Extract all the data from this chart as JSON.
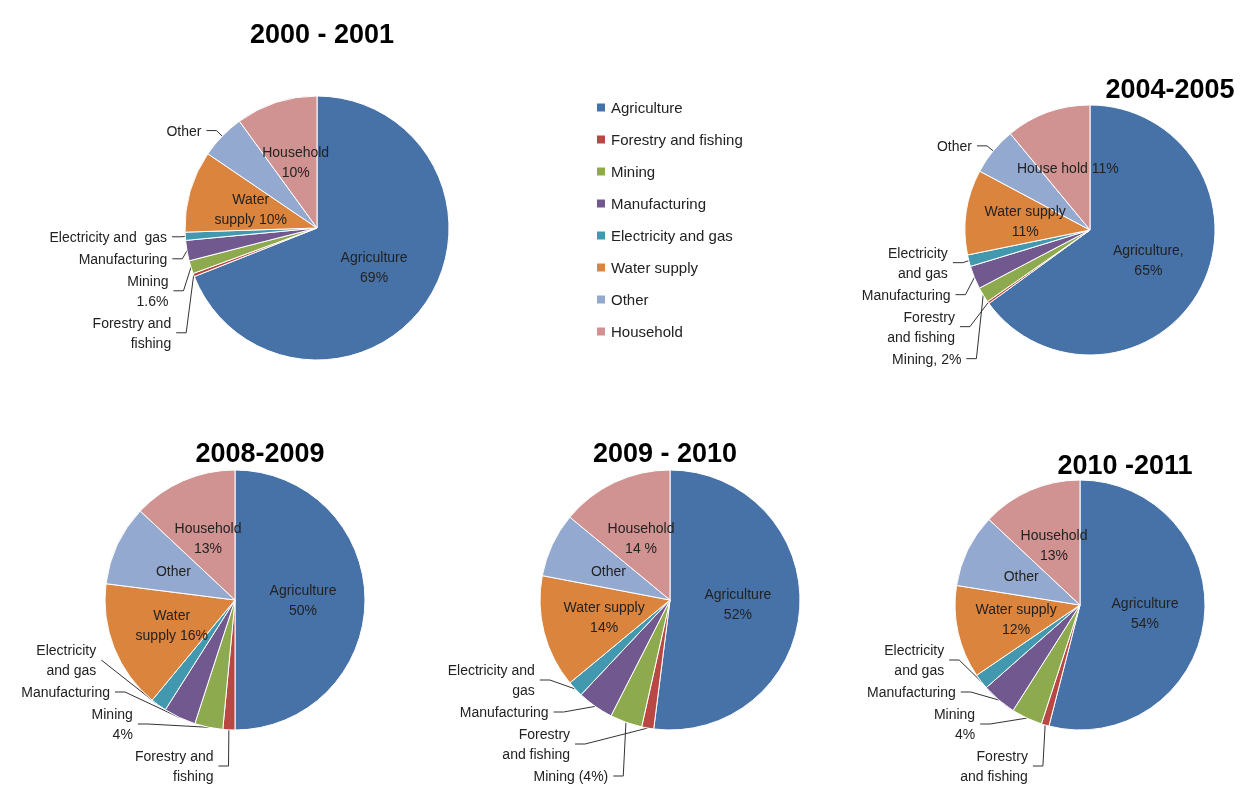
{
  "chart_data": [
    {
      "type": "pie",
      "title": "2000 - 2001",
      "legend": "right",
      "categories": [
        "Agriculture",
        "Forestry and fishing",
        "Mining",
        "Manufacturing",
        "Electricity and gas",
        "Water supply",
        "Other",
        "Household"
      ],
      "values": [
        69,
        0.4,
        1.6,
        2.5,
        1,
        10,
        5.5,
        10
      ],
      "colors": [
        "#4672a8",
        "#b94743",
        "#8eaa4e",
        "#71588f",
        "#4198af",
        "#db843d",
        "#93a9cf",
        "#d19392"
      ],
      "value_labels": [
        "Agriculture\n69%",
        "Forestry and\nfishing",
        "Mining\n1.6%",
        "Manufacturing",
        "Electricity and  gas",
        "Water\nsupply 10%",
        "Other",
        "Household\n10%"
      ]
    },
    {
      "type": "pie",
      "title": "2004-2005",
      "categories": [
        null,
        null,
        null,
        null,
        null,
        null,
        null,
        null
      ],
      "values": [
        65,
        0.3,
        2,
        3,
        1.5,
        11,
        6.2,
        11
      ],
      "colors": [
        "#4672a8",
        "#b94743",
        "#8eaa4e",
        "#71588f",
        "#4198af",
        "#db843d",
        "#93a9cf",
        "#d19392"
      ],
      "value_labels": [
        "Agriculture,\n65%",
        "Forestry\nand fishing",
        "Mining, 2%",
        "Manufacturing",
        "Electricity\nand gas",
        "Water supply\n11%",
        "Other",
        "House hold 11%"
      ]
    },
    {
      "type": "pie",
      "title": "2008-2009",
      "categories": [
        null,
        null,
        null,
        null,
        null,
        null,
        null,
        null
      ],
      "values": [
        50,
        1.5,
        3.5,
        4,
        2,
        16,
        10,
        13
      ],
      "colors": [
        "#4672a8",
        "#b94743",
        "#8eaa4e",
        "#71588f",
        "#4198af",
        "#db843d",
        "#93a9cf",
        "#d19392"
      ],
      "value_labels": [
        "Agriculture\n50%",
        "Forestry and\nfishing",
        "Mining\n4%",
        "Manufacturing",
        "Electricity\nand gas",
        "Water\nsupply 16%",
        "Other",
        "Household\n13%"
      ]
    },
    {
      "type": "pie",
      "title": "2009 - 2010",
      "categories": [
        null,
        null,
        null,
        null,
        null,
        null,
        null,
        null
      ],
      "values": [
        52,
        1.5,
        4,
        4.5,
        2,
        14,
        8,
        14
      ],
      "colors": [
        "#4672a8",
        "#b94743",
        "#8eaa4e",
        "#71588f",
        "#4198af",
        "#db843d",
        "#93a9cf",
        "#d19392"
      ],
      "value_labels": [
        "Agriculture\n52%",
        "Forestry\nand fishing",
        "Mining (4%)",
        "Manufacturing",
        "Electricity and\ngas",
        "Water supply\n14%",
        "Other",
        "Household\n14 %"
      ]
    },
    {
      "type": "pie",
      "title": "2010 -2011",
      "categories": [
        null,
        null,
        null,
        null,
        null,
        null,
        null,
        null
      ],
      "values": [
        54,
        1,
        4,
        4.5,
        2,
        12,
        9.5,
        13
      ],
      "colors": [
        "#4672a8",
        "#b94743",
        "#8eaa4e",
        "#71588f",
        "#4198af",
        "#db843d",
        "#93a9cf",
        "#d19392"
      ],
      "value_labels": [
        "Agriculture\n54%",
        "Forestry\nand fishing",
        "Mining\n4%",
        "Manufacturing",
        "Electricity\nand gas",
        "Water supply\n12%",
        "Other",
        "Household\n13%"
      ]
    }
  ]
}
